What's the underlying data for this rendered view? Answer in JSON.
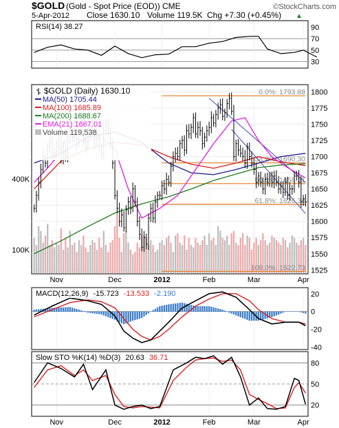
{
  "header": {
    "symbol": "$GOLD",
    "name": "(Gold - Spot Price (EOD))",
    "exchange": "CME",
    "date": "5-Apr-2012",
    "close": "Close 1630.10",
    "volume": "Volume 119.5K",
    "change": "Chg +7.30 (+0.45%)",
    "change_arrow": "▲",
    "brand": "©StockCharts.com"
  },
  "colors": {
    "price": "#000000",
    "ma50": "#1c1c8c",
    "ma100": "#d81e1e",
    "ma200": "#1e7a1e",
    "ema21": "#e01be0",
    "volume": "#bdbdbd",
    "volume_down": "#f0a8a8",
    "fib": "#e07a1e",
    "trend": "#4a4ab0",
    "macd_hist": "#3a7cc8"
  },
  "chart_data": [
    {
      "type": "line",
      "panel": "rsi",
      "legend": "RSI(14) 38.27",
      "ylim": [
        20,
        100
      ],
      "yticks": [
        90,
        70,
        50,
        30
      ],
      "reference_lines": [
        70,
        50,
        30
      ],
      "series": [
        {
          "name": "RSI(14)",
          "x": [
            0,
            6,
            12,
            18,
            24,
            30,
            36,
            42,
            48,
            54,
            60,
            66,
            72,
            78,
            84,
            90,
            96,
            100,
            104,
            110,
            116,
            120,
            126
          ],
          "values": [
            46,
            55,
            59,
            52,
            50,
            41,
            57,
            44,
            37,
            42,
            43,
            56,
            56,
            62,
            65,
            72,
            74,
            74,
            52,
            44,
            46,
            50,
            38
          ]
        }
      ]
    },
    {
      "type": "candlestick",
      "panel": "price",
      "legend": "$GOLD (Daily) 1630.10",
      "ylim": [
        1520,
        1810
      ],
      "yticks": [
        1800,
        1775,
        1750,
        1725,
        1700,
        1675,
        1650,
        1625,
        1600,
        1575,
        1550,
        1525
      ],
      "x_ticks": [
        {
          "x": 10,
          "label": "Nov"
        },
        {
          "x": 36,
          "label": "Dec"
        },
        {
          "x": 57,
          "label": "2012"
        },
        {
          "x": 78,
          "label": "Feb"
        },
        {
          "x": 98,
          "label": "Mar"
        },
        {
          "x": 120,
          "label": "Apr"
        }
      ],
      "close": [
        1620,
        1640,
        1660,
        1680,
        1700,
        1690,
        1715,
        1722,
        1700,
        1705,
        1720,
        1735,
        1695,
        1715,
        1700,
        1725,
        1740,
        1730,
        1755,
        1720,
        1745,
        1760,
        1725,
        1715,
        1735,
        1745,
        1760,
        1720,
        1730,
        1715,
        1705,
        1740,
        1750,
        1735,
        1720,
        1690,
        1640,
        1620,
        1600,
        1610,
        1590,
        1618,
        1630,
        1620,
        1650,
        1630,
        1600,
        1580,
        1560,
        1575,
        1565,
        1605,
        1620,
        1605,
        1630,
        1640,
        1640,
        1655,
        1650,
        1665,
        1660,
        1685,
        1700,
        1705,
        1700,
        1720,
        1725,
        1710,
        1740,
        1735,
        1745,
        1760,
        1735,
        1745,
        1740,
        1720,
        1730,
        1740,
        1745,
        1760,
        1752,
        1765,
        1775,
        1780,
        1762,
        1768,
        1782,
        1790,
        1770,
        1700,
        1720,
        1710,
        1705,
        1700,
        1690,
        1715,
        1700,
        1690,
        1680,
        1660,
        1670,
        1660,
        1650,
        1665,
        1660,
        1670,
        1660,
        1670,
        1660,
        1650,
        1655,
        1645,
        1660,
        1640,
        1650,
        1650,
        1670,
        1670,
        1660,
        1630,
        1635,
        1630
      ],
      "series_lines": [
        {
          "name": "MA(50)",
          "legend": "MA(50) 1705.44",
          "color_key": "ma50",
          "x": [
            0,
            12,
            24,
            36,
            48,
            60,
            70,
            80,
            90,
            100,
            110,
            121
          ],
          "values": [
            1690,
            1705,
            1730,
            1738,
            1722,
            1690,
            1675,
            1672,
            1680,
            1690,
            1700,
            1705
          ]
        },
        {
          "name": "MA(100)",
          "legend": "MA(100) 1685.89",
          "color_key": "ma100",
          "x": [
            0,
            12,
            24,
            36,
            48,
            60,
            70,
            80,
            90,
            100,
            110,
            121
          ],
          "values": [
            1650,
            1693,
            1712,
            1722,
            1718,
            1700,
            1688,
            1682,
            1690,
            1700,
            1692,
            1686
          ]
        },
        {
          "name": "MA(200)",
          "legend": "MA(200) 1688.67",
          "color_key": "ma200",
          "x": [
            0,
            12,
            24,
            36,
            48,
            60,
            70,
            80,
            90,
            100,
            110,
            121
          ],
          "values": [
            1550,
            1570,
            1592,
            1613,
            1627,
            1638,
            1650,
            1663,
            1673,
            1683,
            1687,
            1689
          ]
        },
        {
          "name": "EMA(21)",
          "legend": "EMA(21) 1667.01",
          "color_key": "ema21",
          "x": [
            0,
            8,
            16,
            22,
            30,
            36,
            42,
            48,
            56,
            64,
            72,
            80,
            88,
            94,
            100,
            106,
            112,
            121
          ],
          "values": [
            1660,
            1690,
            1735,
            1722,
            1730,
            1712,
            1650,
            1605,
            1620,
            1640,
            1680,
            1720,
            1755,
            1760,
            1725,
            1700,
            1685,
            1667
          ]
        }
      ],
      "fib_levels": [
        {
          "x0": 57,
          "x1": 121,
          "value": 1793.88,
          "label": "0.0%: 1793.88"
        },
        {
          "x0": 57,
          "x1": 121,
          "value": 1690.3,
          "label": "38.2%: 1690.30"
        },
        {
          "x0": 57,
          "x1": 121,
          "value": 1658.31,
          "label": "50.0%: 1658.31"
        },
        {
          "x0": 57,
          "x1": 121,
          "value": 1626.34,
          "label": "61.8%: 1626.34"
        },
        {
          "x0": 57,
          "x1": 121,
          "value": 1522.73,
          "label": "100.0%: 1522.73"
        }
      ],
      "trendlines": [
        {
          "x0": 78,
          "x1": 121,
          "y0": 1790,
          "y1": 1660
        },
        {
          "x0": 88,
          "x1": 121,
          "y0": 1742,
          "y1": 1612
        }
      ]
    },
    {
      "type": "bar",
      "panel": "volume",
      "legend": "Volume 119,538",
      "ylim": [
        0,
        500
      ],
      "yticks": [
        {
          "value": 400,
          "label": "400K"
        },
        {
          "value": 100,
          "label": "100K"
        }
      ],
      "values": [
        150,
        120,
        200,
        180,
        130,
        160,
        210,
        120,
        140,
        110,
        130,
        120,
        190,
        100,
        150,
        110,
        180,
        120,
        130,
        90,
        140,
        120,
        160,
        110,
        90,
        120,
        140,
        130,
        100,
        150,
        110,
        180,
        120,
        90,
        130,
        140,
        200,
        260,
        150,
        90,
        170,
        180,
        130,
        100,
        80,
        90,
        130,
        110,
        160,
        160,
        150,
        120,
        140,
        120,
        90,
        100,
        130,
        140,
        120,
        150,
        160,
        130,
        90,
        160,
        170,
        130,
        120,
        160,
        100,
        150,
        120,
        110,
        150,
        130,
        120,
        140,
        160,
        120,
        170,
        140,
        150,
        120,
        200,
        180,
        150,
        140,
        160,
        120,
        170,
        180,
        130,
        120,
        150,
        170,
        120,
        160,
        150,
        100,
        130,
        150,
        120,
        140,
        170,
        140,
        120,
        130,
        160,
        150,
        140,
        130,
        120,
        150,
        140,
        110,
        130,
        160,
        150,
        130,
        120,
        140,
        150,
        120
      ]
    },
    {
      "type": "line",
      "panel": "macd",
      "legend": {
        "label": "MACD(12,26,9)",
        "macd": "-15.723",
        "signal": "-13.533",
        "hist": "-2.190"
      },
      "ylim": [
        -42,
        26
      ],
      "yticks": [
        20,
        0,
        -20,
        -40
      ],
      "series": [
        {
          "name": "MACD",
          "x": [
            0,
            8,
            16,
            24,
            30,
            36,
            40,
            44,
            48,
            52,
            56,
            60,
            66,
            72,
            78,
            84,
            90,
            96,
            100,
            106,
            112,
            118,
            121
          ],
          "values": [
            -4,
            6,
            15,
            12,
            8,
            -5,
            -22,
            -30,
            -35,
            -32,
            -22,
            -12,
            4,
            12,
            20,
            22,
            16,
            2,
            -8,
            -14,
            -12,
            -12,
            -16
          ]
        },
        {
          "name": "Signal",
          "x": [
            0,
            8,
            16,
            24,
            30,
            36,
            40,
            44,
            48,
            52,
            56,
            60,
            66,
            72,
            78,
            84,
            90,
            96,
            100,
            106,
            112,
            118,
            121
          ],
          "values": [
            -6,
            2,
            10,
            13,
            11,
            4,
            -8,
            -20,
            -28,
            -32,
            -28,
            -20,
            -6,
            6,
            14,
            20,
            20,
            12,
            2,
            -8,
            -12,
            -12,
            -14
          ]
        }
      ]
    },
    {
      "type": "line",
      "panel": "stoch",
      "legend": {
        "label": "Slow STO %K(14) %D(3)",
        "k": "20.63",
        "d": "36.71"
      },
      "ylim": [
        5,
        95
      ],
      "yticks": [
        80,
        50,
        20
      ],
      "reference_lines": [
        80,
        50,
        20
      ],
      "series": [
        {
          "name": "%K",
          "x": [
            0,
            6,
            12,
            18,
            22,
            26,
            32,
            36,
            40,
            44,
            48,
            52,
            56,
            62,
            68,
            72,
            76,
            80,
            84,
            88,
            92,
            96,
            100,
            104,
            108,
            112,
            116,
            118,
            121
          ],
          "values": [
            52,
            80,
            72,
            60,
            78,
            42,
            70,
            20,
            14,
            18,
            20,
            15,
            18,
            70,
            80,
            88,
            86,
            90,
            78,
            88,
            60,
            20,
            30,
            15,
            14,
            18,
            58,
            55,
            21
          ]
        },
        {
          "name": "%D",
          "x": [
            0,
            6,
            12,
            18,
            22,
            26,
            32,
            36,
            40,
            44,
            48,
            52,
            56,
            62,
            68,
            72,
            76,
            80,
            84,
            88,
            92,
            96,
            100,
            104,
            108,
            112,
            116,
            118,
            121
          ],
          "values": [
            45,
            70,
            76,
            62,
            70,
            55,
            62,
            35,
            18,
            16,
            18,
            17,
            16,
            55,
            74,
            84,
            86,
            87,
            82,
            84,
            70,
            35,
            28,
            22,
            15,
            16,
            45,
            52,
            37
          ]
        }
      ]
    }
  ]
}
